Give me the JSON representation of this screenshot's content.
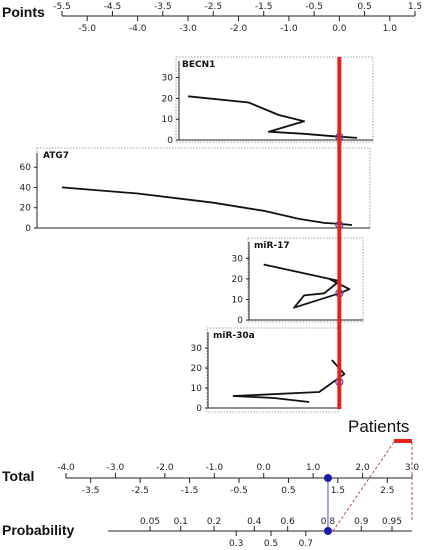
{
  "chart_data": {
    "type": "line",
    "title": "",
    "points_axis": {
      "title": "Points",
      "upper_ticks": [
        -5.5,
        -4.5,
        -3.5,
        -2.5,
        -1.5,
        -0.5,
        0.5,
        1.5
      ],
      "lower_ticks": [
        -5.0,
        -4.0,
        -3.0,
        -2.0,
        -1.0,
        0.0,
        1.0
      ],
      "range": [
        -5.5,
        1.5
      ]
    },
    "current_points": 0.0,
    "panels": [
      {
        "name": "BECN1",
        "y_ticks": [
          0,
          10,
          20,
          30
        ],
        "y_range": [
          0,
          37
        ],
        "x_range": [
          -3.0,
          0.35
        ],
        "curve": [
          [
            -3.0,
            21
          ],
          [
            -1.8,
            18
          ],
          [
            -1.2,
            12
          ],
          [
            -0.7,
            9
          ],
          [
            -1.4,
            4
          ],
          [
            -0.7,
            3
          ],
          [
            -0.1,
            1.8
          ],
          [
            0.35,
            1
          ]
        ],
        "point": [
          0.0,
          1.5
        ]
      },
      {
        "name": "ATG7",
        "y_ticks": [
          0,
          20,
          40,
          60
        ],
        "y_range": [
          0,
          72
        ],
        "x_range": [
          -5.5,
          0.25
        ],
        "curve": [
          [
            -5.5,
            40
          ],
          [
            -4.0,
            34
          ],
          [
            -2.5,
            25
          ],
          [
            -1.5,
            17
          ],
          [
            -0.8,
            9
          ],
          [
            -0.3,
            5
          ],
          [
            0.0,
            4
          ],
          [
            0.25,
            3
          ]
        ],
        "point": [
          0.0,
          3
        ]
      },
      {
        "name": "miR-17",
        "y_ticks": [
          0,
          10,
          20,
          30
        ],
        "y_range": [
          0,
          37
        ],
        "x_range": [
          -1.5,
          0.25
        ],
        "curve": [
          [
            -1.5,
            27
          ],
          [
            0.0,
            19
          ],
          [
            -0.3,
            13
          ],
          [
            -0.7,
            12
          ],
          [
            -0.9,
            6
          ],
          [
            0.0,
            13
          ],
          [
            0.2,
            15
          ],
          [
            -0.2,
            20
          ]
        ],
        "point": [
          0.0,
          13
        ]
      },
      {
        "name": "miR-30a",
        "y_ticks": [
          0,
          10,
          20,
          30
        ],
        "y_range": [
          0,
          37
        ],
        "x_range": [
          -2.1,
          0.3
        ],
        "curve": [
          [
            -0.15,
            24
          ],
          [
            0.1,
            17
          ],
          [
            -0.4,
            8
          ],
          [
            -2.1,
            6
          ],
          [
            -1.3,
            5
          ],
          [
            -0.6,
            3
          ]
        ],
        "point": [
          0.0,
          13
        ]
      }
    ],
    "total_axis": {
      "title": "Total",
      "upper_ticks": [
        -4.0,
        -3.0,
        -2.0,
        -1.0,
        0.0,
        1.0,
        2.0,
        3.0
      ],
      "lower_ticks": [
        -3.5,
        -2.5,
        -1.5,
        -0.5,
        0.5,
        1.5,
        2.5
      ],
      "range": [
        -4.0,
        3.0
      ],
      "value": 1.3
    },
    "probability_axis": {
      "title": "Probability",
      "upper_ticks": [
        "0.05",
        "0.1",
        "0.2",
        "0.4",
        "0.6",
        "0.8",
        "0.9",
        "0.95"
      ],
      "lower_ticks": [
        "0.3",
        "0.5",
        "0.7"
      ],
      "value": 0.8
    },
    "annotation": "Patients",
    "colors": {
      "reference_line": "#e8201c",
      "marker": "#1a1aa8",
      "connector": "#8888dd",
      "callout_lines": "#d94040"
    }
  }
}
